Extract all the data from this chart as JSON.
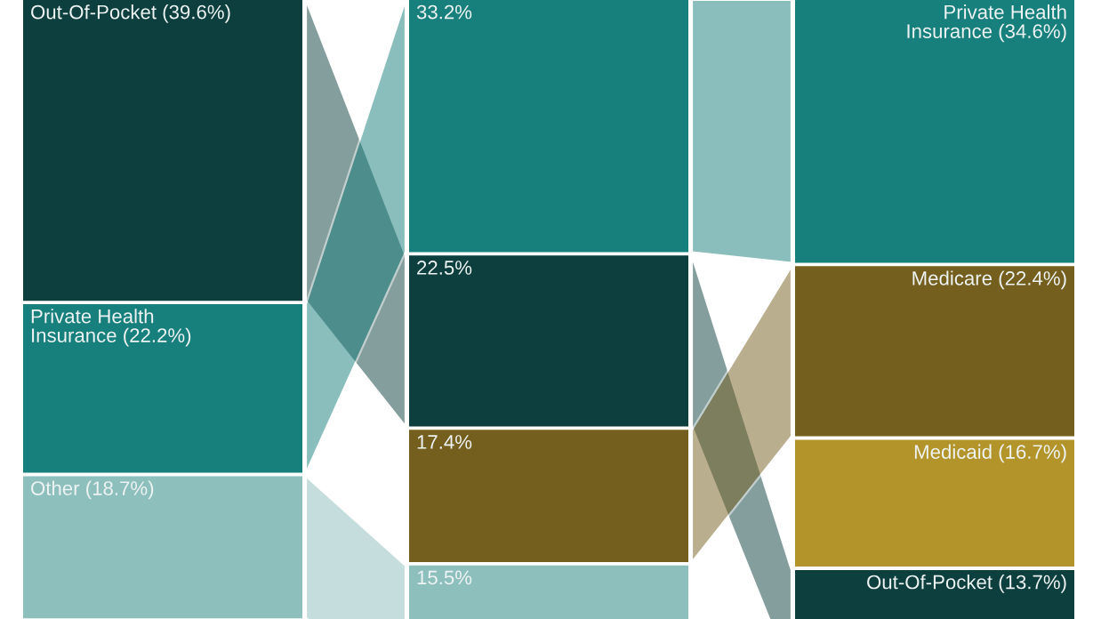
{
  "chart_data": [
    {
      "type": "other",
      "data_labels": true,
      "values": [
        39.6,
        22.2,
        18.7
      ],
      "colors": [
        "#0c3f3d",
        "#177f7c",
        "#8dbfbd"
      ],
      "value_labels": [
        "Out-Of-Pocket (39.6%)",
        "Private Health\nInsurance (22.2%)",
        "Other (18.7%)"
      ]
    },
    {
      "type": "other",
      "data_labels": true,
      "values": [
        33.2,
        22.5,
        17.4,
        15.5
      ],
      "colors": [
        "#177f7c",
        "#0c3f3d",
        "#755f1e",
        "#8dbfbd"
      ],
      "value_labels": [
        "33.2%",
        "22.5%",
        "17.4%",
        "15.5%"
      ]
    },
    {
      "type": "other",
      "data_labels": true,
      "values": [
        34.6,
        22.4,
        16.7,
        13.7
      ],
      "colors": [
        "#177f7c",
        "#755f1e",
        "#b3942a",
        "#0c3f3d"
      ],
      "value_labels": [
        "Private Health\nInsurance (34.6%)",
        "Medicare (22.4%)",
        "Medicaid (16.7%)",
        "Out-Of-Pocket (13.7%)"
      ]
    }
  ]
}
